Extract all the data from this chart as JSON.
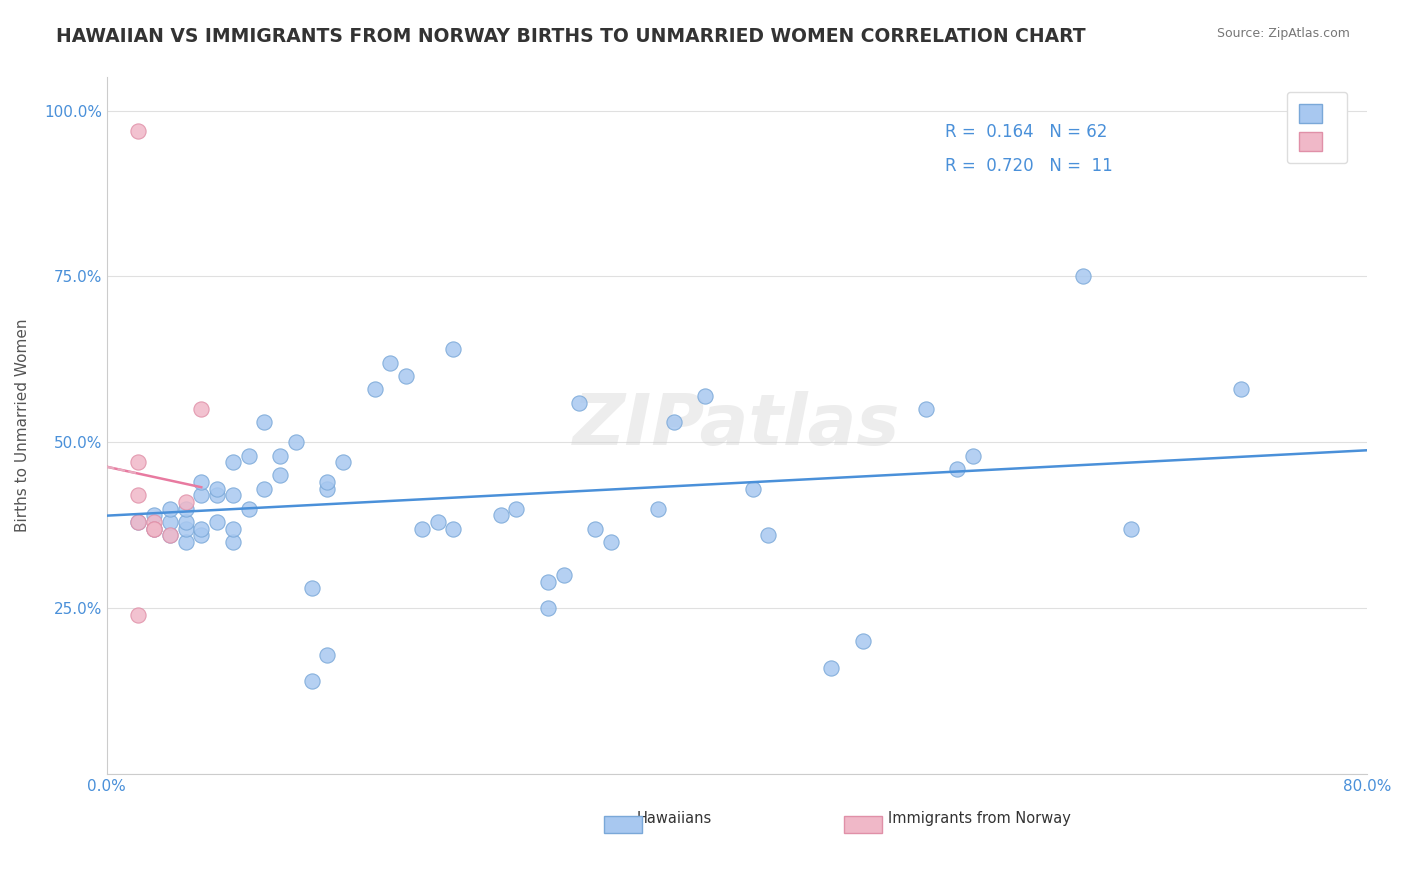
{
  "title": "HAWAIIAN VS IMMIGRANTS FROM NORWAY BIRTHS TO UNMARRIED WOMEN CORRELATION CHART",
  "source_text": "Source: ZipAtlas.com",
  "xlabel": "",
  "ylabel": "Births to Unmarried Women",
  "watermark": "ZIPatlas",
  "legend_blue_r": "R =  0.164",
  "legend_blue_n": "N = 62",
  "legend_pink_r": "R =  0.720",
  "legend_pink_n": "N =  11",
  "legend_blue_label": "Hawaiians",
  "legend_pink_label": "Immigrants from Norway",
  "xlim": [
    0.0,
    0.8
  ],
  "ylim": [
    0.0,
    1.05
  ],
  "xticks": [
    0.0,
    0.2,
    0.4,
    0.6,
    0.8
  ],
  "xticklabels": [
    "0.0%",
    "",
    "",
    "",
    "80.0%"
  ],
  "yticks": [
    0.0,
    0.25,
    0.5,
    0.75,
    1.0
  ],
  "yticklabels": [
    "",
    "25.0%",
    "50.0%",
    "75.0%",
    "100.0%"
  ],
  "blue_scatter_x": [
    0.02,
    0.03,
    0.03,
    0.04,
    0.04,
    0.04,
    0.05,
    0.05,
    0.05,
    0.05,
    0.06,
    0.06,
    0.06,
    0.06,
    0.07,
    0.07,
    0.07,
    0.08,
    0.08,
    0.08,
    0.08,
    0.09,
    0.09,
    0.1,
    0.1,
    0.11,
    0.11,
    0.12,
    0.13,
    0.13,
    0.14,
    0.14,
    0.14,
    0.15,
    0.17,
    0.18,
    0.19,
    0.2,
    0.21,
    0.22,
    0.22,
    0.25,
    0.26,
    0.28,
    0.28,
    0.29,
    0.3,
    0.31,
    0.32,
    0.35,
    0.36,
    0.38,
    0.41,
    0.42,
    0.46,
    0.48,
    0.52,
    0.54,
    0.55,
    0.62,
    0.65,
    0.72
  ],
  "blue_scatter_y": [
    0.38,
    0.37,
    0.39,
    0.36,
    0.38,
    0.4,
    0.35,
    0.37,
    0.38,
    0.4,
    0.36,
    0.37,
    0.42,
    0.44,
    0.38,
    0.42,
    0.43,
    0.35,
    0.37,
    0.42,
    0.47,
    0.4,
    0.48,
    0.43,
    0.53,
    0.45,
    0.48,
    0.5,
    0.14,
    0.28,
    0.43,
    0.44,
    0.18,
    0.47,
    0.58,
    0.62,
    0.6,
    0.37,
    0.38,
    0.37,
    0.64,
    0.39,
    0.4,
    0.25,
    0.29,
    0.3,
    0.56,
    0.37,
    0.35,
    0.4,
    0.53,
    0.57,
    0.43,
    0.36,
    0.16,
    0.2,
    0.55,
    0.46,
    0.48,
    0.75,
    0.37,
    0.58
  ],
  "pink_scatter_x": [
    0.02,
    0.02,
    0.02,
    0.02,
    0.02,
    0.03,
    0.03,
    0.03,
    0.04,
    0.05,
    0.06
  ],
  "pink_scatter_y": [
    0.97,
    0.47,
    0.42,
    0.38,
    0.24,
    0.38,
    0.37,
    0.37,
    0.36,
    0.41,
    0.55
  ],
  "blue_line_color": "#4a90d9",
  "pink_line_color": "#e87aa0",
  "pink_dash_color": "#e8aabf",
  "scatter_blue_color": "#a8c8f0",
  "scatter_pink_color": "#f0b8c8",
  "scatter_blue_edge": "#7aa8d8",
  "scatter_pink_edge": "#e090a8",
  "title_color": "#333333",
  "source_color": "#777777",
  "watermark_color": "#cccccc",
  "axis_label_color": "#555555",
  "tick_label_color": "#4a90d9",
  "grid_color": "#e0e0e0",
  "legend_border_color": "#dddddd",
  "background_color": "#ffffff"
}
